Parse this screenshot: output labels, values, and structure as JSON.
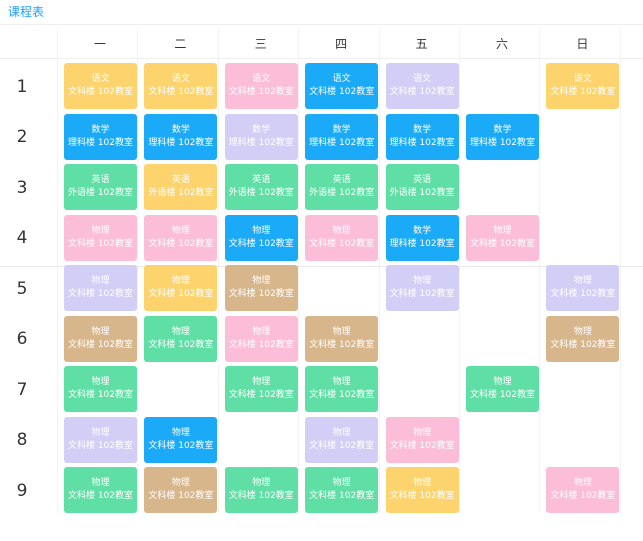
{
  "title": "课程表",
  "days": [
    "一",
    "二",
    "三",
    "四",
    "五",
    "六",
    "日"
  ],
  "periods": [
    "1",
    "2",
    "3",
    "4",
    "5",
    "6",
    "7",
    "8",
    "9"
  ],
  "colors": {
    "blue": "#1aaaf8",
    "green": "#5fdfa6",
    "yellow": "#fcd36c",
    "pink": "#fcbdd9",
    "purple": "#d3cef5",
    "tan": "#d7b68c"
  },
  "cells": [
    {
      "period": 1,
      "day": 1,
      "subject": "语文",
      "room": "文科楼 102教室",
      "color": "yellow"
    },
    {
      "period": 1,
      "day": 2,
      "subject": "语文",
      "room": "文科楼 102教室",
      "color": "yellow"
    },
    {
      "period": 1,
      "day": 3,
      "subject": "语文",
      "room": "文科楼 102教室",
      "color": "pink"
    },
    {
      "period": 1,
      "day": 4,
      "subject": "语文",
      "room": "文科楼 102教室",
      "color": "blue"
    },
    {
      "period": 1,
      "day": 5,
      "subject": "语文",
      "room": "文科楼 102教室",
      "color": "purple"
    },
    {
      "period": 1,
      "day": 7,
      "subject": "语文",
      "room": "文科楼 102教室",
      "color": "yellow"
    },
    {
      "period": 2,
      "day": 1,
      "subject": "数学",
      "room": "理科楼 102教室",
      "color": "blue"
    },
    {
      "period": 2,
      "day": 2,
      "subject": "数学",
      "room": "理科楼 102教室",
      "color": "blue"
    },
    {
      "period": 2,
      "day": 3,
      "subject": "数学",
      "room": "理科楼 102教室",
      "color": "purple"
    },
    {
      "period": 2,
      "day": 4,
      "subject": "数学",
      "room": "理科楼 102教室",
      "color": "blue"
    },
    {
      "period": 2,
      "day": 5,
      "subject": "数学",
      "room": "理科楼 102教室",
      "color": "blue"
    },
    {
      "period": 2,
      "day": 6,
      "subject": "数学",
      "room": "理科楼 102教室",
      "color": "blue"
    },
    {
      "period": 3,
      "day": 1,
      "subject": "英语",
      "room": "外语楼 102教室",
      "color": "green"
    },
    {
      "period": 3,
      "day": 2,
      "subject": "英语",
      "room": "外语楼 102教室",
      "color": "yellow"
    },
    {
      "period": 3,
      "day": 3,
      "subject": "英语",
      "room": "外语楼 102教室",
      "color": "green"
    },
    {
      "period": 3,
      "day": 4,
      "subject": "英语",
      "room": "外语楼 102教室",
      "color": "green"
    },
    {
      "period": 3,
      "day": 5,
      "subject": "英语",
      "room": "外语楼 102教室",
      "color": "green"
    },
    {
      "period": 4,
      "day": 1,
      "subject": "物理",
      "room": "文科楼 102教室",
      "color": "pink"
    },
    {
      "period": 4,
      "day": 2,
      "subject": "物理",
      "room": "文科楼 102教室",
      "color": "pink"
    },
    {
      "period": 4,
      "day": 3,
      "subject": "物理",
      "room": "文科楼 102教室",
      "color": "blue"
    },
    {
      "period": 4,
      "day": 4,
      "subject": "物理",
      "room": "文科楼 102教室",
      "color": "pink"
    },
    {
      "period": 4,
      "day": 5,
      "subject": "数学",
      "room": "理科楼 102教室",
      "color": "blue"
    },
    {
      "period": 4,
      "day": 6,
      "subject": "物理",
      "room": "文科楼 102教室",
      "color": "pink"
    },
    {
      "period": 5,
      "day": 1,
      "subject": "物理",
      "room": "文科楼 102教室",
      "color": "purple"
    },
    {
      "period": 5,
      "day": 2,
      "subject": "物理",
      "room": "文科楼 102教室",
      "color": "yellow"
    },
    {
      "period": 5,
      "day": 3,
      "subject": "物理",
      "room": "文科楼 102教室",
      "color": "tan"
    },
    {
      "period": 5,
      "day": 5,
      "subject": "物理",
      "room": "文科楼 102教室",
      "color": "purple"
    },
    {
      "period": 5,
      "day": 7,
      "subject": "物理",
      "room": "文科楼 102教室",
      "color": "purple"
    },
    {
      "period": 6,
      "day": 1,
      "subject": "物理",
      "room": "文科楼 102教室",
      "color": "tan"
    },
    {
      "period": 6,
      "day": 2,
      "subject": "物理",
      "room": "文科楼 102教室",
      "color": "green"
    },
    {
      "period": 6,
      "day": 3,
      "subject": "物理",
      "room": "文科楼 102教室",
      "color": "pink"
    },
    {
      "period": 6,
      "day": 4,
      "subject": "物理",
      "room": "文科楼 102教室",
      "color": "tan"
    },
    {
      "period": 6,
      "day": 7,
      "subject": "物理",
      "room": "文科楼 102教室",
      "color": "tan"
    },
    {
      "period": 7,
      "day": 1,
      "subject": "物理",
      "room": "文科楼 102教室",
      "color": "green"
    },
    {
      "period": 7,
      "day": 3,
      "subject": "物理",
      "room": "文科楼 102教室",
      "color": "green"
    },
    {
      "period": 7,
      "day": 4,
      "subject": "物理",
      "room": "文科楼 102教室",
      "color": "green"
    },
    {
      "period": 7,
      "day": 6,
      "subject": "物理",
      "room": "文科楼 102教室",
      "color": "green"
    },
    {
      "period": 8,
      "day": 1,
      "subject": "物理",
      "room": "文科楼 102教室",
      "color": "purple"
    },
    {
      "period": 8,
      "day": 2,
      "subject": "物理",
      "room": "文科楼 102教室",
      "color": "blue"
    },
    {
      "period": 8,
      "day": 4,
      "subject": "物理",
      "room": "文科楼 102教室",
      "color": "purple"
    },
    {
      "period": 8,
      "day": 5,
      "subject": "物理",
      "room": "文科楼 102教室",
      "color": "pink"
    },
    {
      "period": 9,
      "day": 1,
      "subject": "物理",
      "room": "文科楼 102教室",
      "color": "green"
    },
    {
      "period": 9,
      "day": 2,
      "subject": "物理",
      "room": "文科楼 102教室",
      "color": "tan"
    },
    {
      "period": 9,
      "day": 3,
      "subject": "物理",
      "room": "文科楼 102教室",
      "color": "green"
    },
    {
      "period": 9,
      "day": 4,
      "subject": "物理",
      "room": "文科楼 102教室",
      "color": "green"
    },
    {
      "period": 9,
      "day": 5,
      "subject": "物理",
      "room": "文科楼 102教室",
      "color": "yellow"
    },
    {
      "period": 9,
      "day": 7,
      "subject": "物理",
      "room": "文科楼 102教室",
      "color": "pink"
    }
  ]
}
